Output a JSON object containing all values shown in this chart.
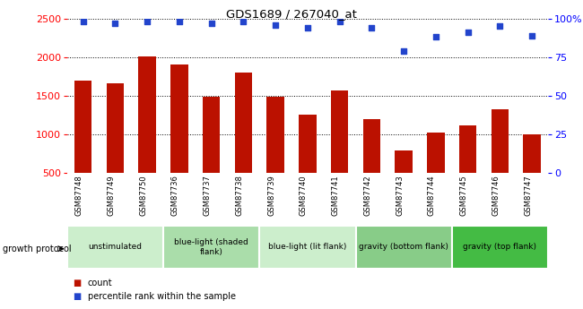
{
  "title": "GDS1689 / 267040_at",
  "samples": [
    "GSM87748",
    "GSM87749",
    "GSM87750",
    "GSM87736",
    "GSM87737",
    "GSM87738",
    "GSM87739",
    "GSM87740",
    "GSM87741",
    "GSM87742",
    "GSM87743",
    "GSM87744",
    "GSM87745",
    "GSM87746",
    "GSM87747"
  ],
  "counts": [
    1700,
    1660,
    2010,
    1900,
    1490,
    1800,
    1490,
    1260,
    1570,
    1200,
    790,
    1020,
    1120,
    1320,
    1000
  ],
  "percentiles": [
    98,
    97,
    98,
    98,
    97,
    98,
    96,
    94,
    98,
    94,
    79,
    88,
    91,
    95,
    89
  ],
  "bar_color": "#bb1100",
  "dot_color": "#2244cc",
  "ylim_left": [
    500,
    2500
  ],
  "ylim_right": [
    0,
    100
  ],
  "yticks_left": [
    500,
    1000,
    1500,
    2000,
    2500
  ],
  "yticks_right": [
    0,
    25,
    50,
    75,
    100
  ],
  "yright_labels": [
    "0",
    "25",
    "50",
    "75",
    "100%"
  ],
  "groups": [
    {
      "label": "unstimulated",
      "indices": [
        0,
        1,
        2
      ],
      "color": "#cceecc"
    },
    {
      "label": "blue-light (shaded\nflank)",
      "indices": [
        3,
        4,
        5
      ],
      "color": "#aaddaa"
    },
    {
      "label": "blue-light (lit flank)",
      "indices": [
        6,
        7,
        8
      ],
      "color": "#cceecc"
    },
    {
      "label": "gravity (bottom flank)",
      "indices": [
        9,
        10,
        11
      ],
      "color": "#88cc88"
    },
    {
      "label": "gravity (top flank)",
      "indices": [
        12,
        13,
        14
      ],
      "color": "#44bb44"
    }
  ],
  "growth_protocol_label": "growth protocol",
  "legend_count_label": "count",
  "legend_pct_label": "percentile rank within the sample",
  "background_plot": "#ffffff",
  "background_xtick": "#d8d8d8"
}
